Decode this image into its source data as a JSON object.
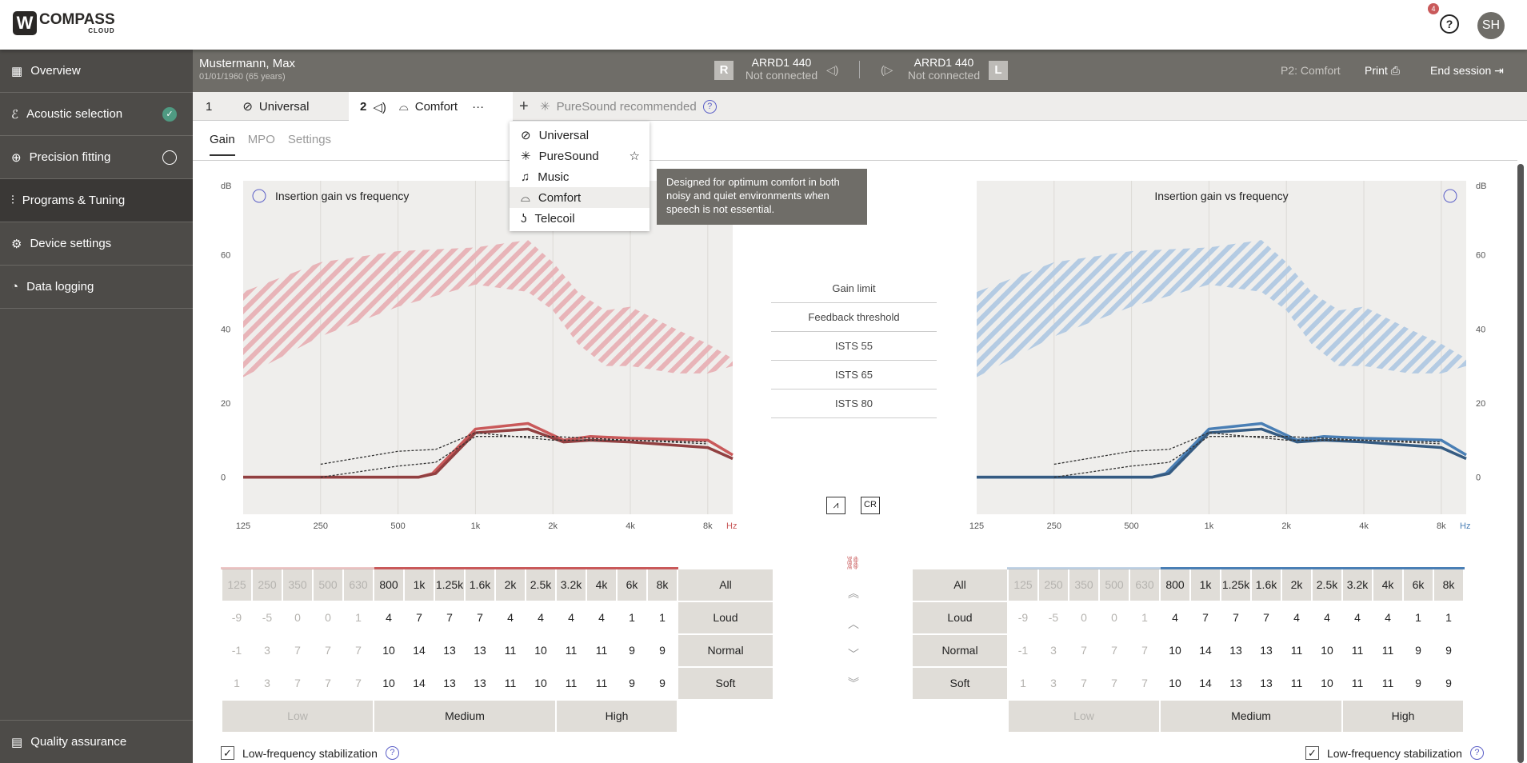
{
  "app": {
    "logo": "COMPASS",
    "logo_sub": "CLOUD",
    "help_badge": "4",
    "avatar": "SH"
  },
  "sidebar": {
    "items": [
      {
        "label": "Overview",
        "icon": "grid-icon"
      },
      {
        "label": "Acoustic selection",
        "icon": "ear-icon",
        "status": "done"
      },
      {
        "label": "Precision fitting",
        "icon": "target-icon",
        "status": "todo"
      },
      {
        "label": "Programs & Tuning",
        "icon": "sliders-icon",
        "active": true
      },
      {
        "label": "Device settings",
        "icon": "device-icon"
      },
      {
        "label": "Data logging",
        "icon": "log-icon"
      }
    ],
    "bottom": "Quality assurance"
  },
  "patient": {
    "name": "Mustermann, Max",
    "dob": "01/01/1960 (65 years)"
  },
  "devices": {
    "right": {
      "side": "R",
      "model": "ARRD1 440",
      "status": "Not connected"
    },
    "left": {
      "side": "L",
      "model": "ARRD1 440",
      "status": "Not connected"
    }
  },
  "session": {
    "program": "P2: Comfort",
    "print": "Print",
    "end": "End session"
  },
  "programs": {
    "tab1_num": "1",
    "tab1": "Universal",
    "tab2_num": "2",
    "tab2": "Comfort",
    "more": "···",
    "add": "+",
    "recommended": "PureSound recommended"
  },
  "dropdown": [
    {
      "label": "Universal"
    },
    {
      "label": "PureSound"
    },
    {
      "label": "Music"
    },
    {
      "label": "Comfort"
    },
    {
      "label": "Telecoil"
    }
  ],
  "tooltip": "Designed for optimum comfort in both noisy and quiet environments when speech is not essential.",
  "subtabs": [
    "Gain",
    "MPO",
    "Settings"
  ],
  "legend": [
    "Gain limit",
    "Feedback threshold",
    "ISTS 55",
    "ISTS 65",
    "ISTS 80"
  ],
  "buttons": {
    "graph": "graph-icon",
    "cr": "CR"
  },
  "colors": {
    "right": "#c9595a",
    "left": "#4a7fb5",
    "right_band": "#e8b4b8",
    "left_band": "#b4cbe3"
  },
  "chart_data": [
    {
      "side": "right",
      "type": "line",
      "title": "Insertion gain vs frequency",
      "ylabel": "dB",
      "xunit": "Hz",
      "xscale": "log",
      "xlim": [
        125,
        10000
      ],
      "ylim": [
        -10,
        80
      ],
      "xticks": [
        "125",
        "250",
        "500",
        "1k",
        "2k",
        "4k",
        "8k"
      ],
      "xtick_values": [
        125,
        250,
        500,
        1000,
        2000,
        4000,
        8000
      ],
      "yticks": [
        0,
        20,
        40,
        60
      ],
      "grid": true,
      "band": {
        "x": [
          125,
          250,
          500,
          1000,
          1600,
          2000,
          2500,
          3200,
          4000,
          6000,
          8000,
          10000
        ],
        "upper": [
          50,
          58,
          61,
          62,
          64,
          58,
          50,
          45,
          46,
          40,
          36,
          32
        ],
        "lower": [
          27,
          38,
          46,
          52,
          50,
          45,
          36,
          30,
          30,
          28,
          28,
          30
        ]
      },
      "series": [
        {
          "style": "solid",
          "x": [
            125,
            600,
            680,
            1000,
            1600,
            2200,
            2800,
            4000,
            8000,
            10000
          ],
          "y": [
            0,
            0,
            1,
            13,
            14.5,
            10,
            11,
            10.5,
            10,
            6
          ]
        },
        {
          "style": "solid-dark",
          "x": [
            125,
            600,
            700,
            1000,
            1600,
            2200,
            2800,
            4000,
            8000,
            10000
          ],
          "y": [
            0,
            0,
            1,
            12,
            13,
            9.5,
            10,
            9.5,
            8,
            5
          ]
        },
        {
          "style": "dashed",
          "x": [
            250,
            500,
            700,
            1000,
            2000,
            4000,
            8000
          ],
          "y": [
            3.5,
            7,
            7.5,
            12,
            10,
            10,
            9.5
          ]
        },
        {
          "style": "dashed",
          "x": [
            250,
            500,
            700,
            1000,
            2000,
            4000,
            8000
          ],
          "y": [
            0,
            3,
            4,
            11,
            11,
            10,
            9
          ]
        }
      ]
    },
    {
      "side": "left",
      "type": "line",
      "title": "Insertion gain vs frequency",
      "ylabel": "dB",
      "xunit": "Hz",
      "xscale": "log",
      "xlim": [
        125,
        10000
      ],
      "ylim": [
        -10,
        80
      ],
      "xticks": [
        "125",
        "250",
        "500",
        "1k",
        "2k",
        "4k",
        "8k"
      ],
      "xtick_values": [
        125,
        250,
        500,
        1000,
        2000,
        4000,
        8000
      ],
      "yticks": [
        0,
        20,
        40,
        60
      ],
      "grid": true,
      "band": {
        "x": [
          125,
          250,
          500,
          1000,
          1600,
          2000,
          2500,
          3200,
          4000,
          6000,
          8000,
          10000
        ],
        "upper": [
          50,
          58,
          61,
          62,
          64,
          58,
          50,
          45,
          46,
          40,
          36,
          32
        ],
        "lower": [
          27,
          38,
          46,
          52,
          50,
          45,
          36,
          30,
          30,
          28,
          28,
          30
        ]
      },
      "series": [
        {
          "style": "solid",
          "x": [
            125,
            600,
            680,
            1000,
            1600,
            2200,
            2800,
            4000,
            8000,
            10000
          ],
          "y": [
            0,
            0,
            1,
            13,
            14.5,
            10,
            11,
            10.5,
            10,
            6
          ]
        },
        {
          "style": "solid-dark",
          "x": [
            125,
            600,
            700,
            1000,
            1600,
            2200,
            2800,
            4000,
            8000,
            10000
          ],
          "y": [
            0,
            0,
            1,
            12,
            13,
            9.5,
            10,
            9.5,
            8,
            5
          ]
        },
        {
          "style": "dashed",
          "x": [
            250,
            500,
            700,
            1000,
            2000,
            4000,
            8000
          ],
          "y": [
            3.5,
            7,
            7.5,
            12,
            10,
            10,
            9.5
          ]
        },
        {
          "style": "dashed",
          "x": [
            250,
            500,
            700,
            1000,
            2000,
            4000,
            8000
          ],
          "y": [
            0,
            3,
            4,
            11,
            11,
            10,
            9
          ]
        }
      ]
    }
  ],
  "table": {
    "freqs": [
      "125",
      "250",
      "350",
      "500",
      "630",
      "800",
      "1k",
      "1.25k",
      "1.6k",
      "2k",
      "2.5k",
      "3.2k",
      "4k",
      "6k",
      "8k"
    ],
    "all": "All",
    "rows": [
      {
        "label": "Loud",
        "values": [
          -9,
          -5,
          0,
          0,
          1,
          4,
          7,
          7,
          7,
          4,
          4,
          4,
          4,
          1,
          1
        ]
      },
      {
        "label": "Normal",
        "values": [
          -1,
          3,
          7,
          7,
          7,
          10,
          14,
          13,
          13,
          11,
          10,
          11,
          11,
          9,
          9
        ]
      },
      {
        "label": "Soft",
        "values": [
          1,
          3,
          7,
          7,
          7,
          10,
          14,
          13,
          13,
          11,
          10,
          11,
          11,
          9,
          9
        ]
      }
    ],
    "bands": [
      "Low",
      "Medium",
      "High"
    ],
    "disabled_count": 5
  },
  "lf_stab": {
    "label": "Low-frequency stabilization",
    "checked": true
  }
}
